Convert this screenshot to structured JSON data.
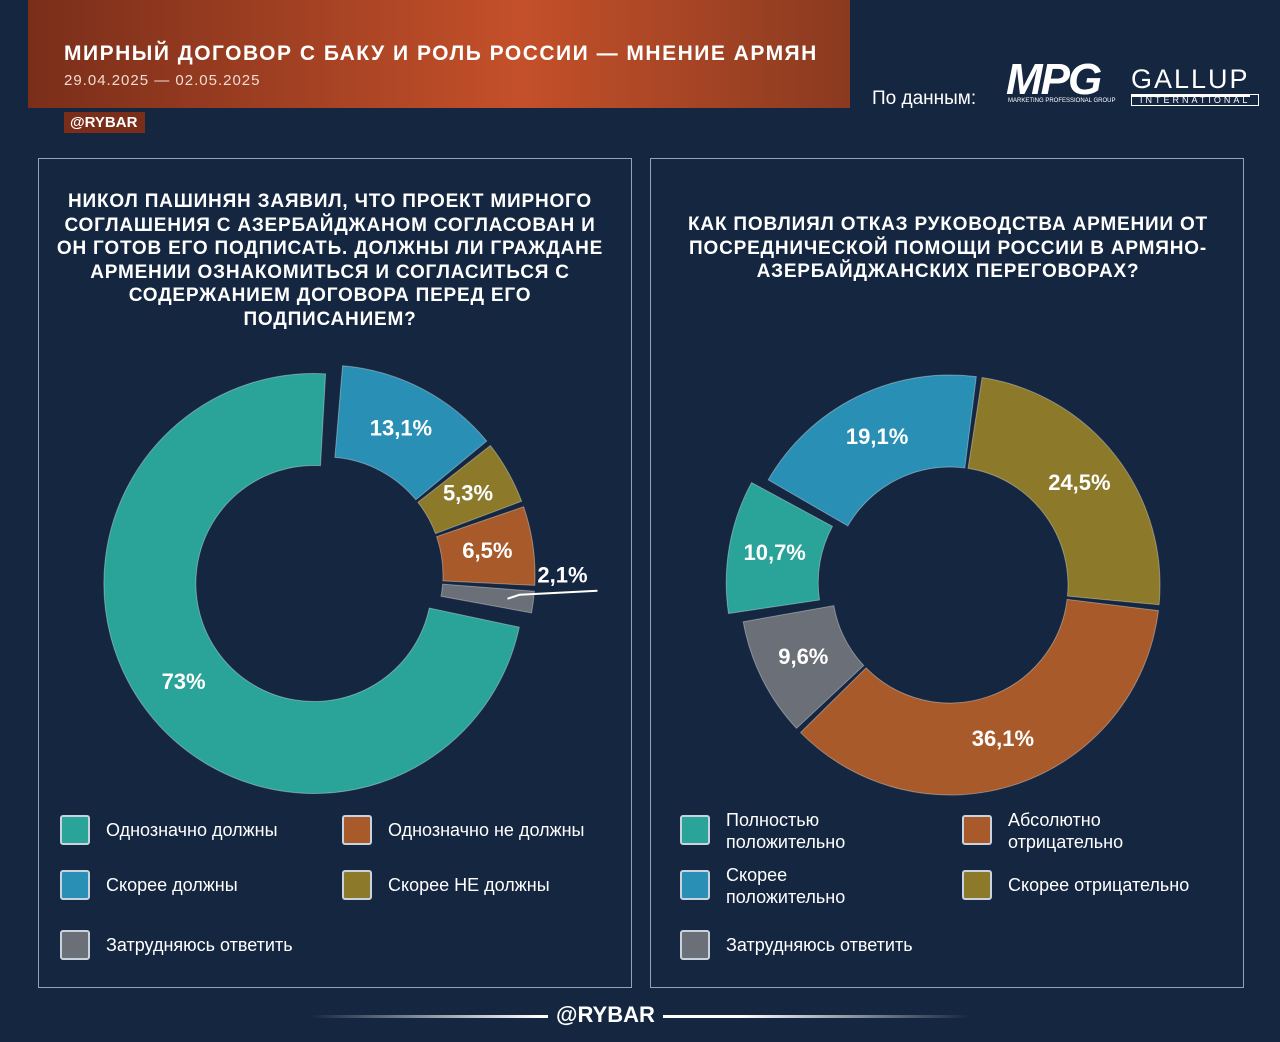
{
  "header": {
    "title": "МИРНЫЙ ДОГОВОР С БАКУ И РОЛЬ РОССИИ — МНЕНИЕ АРМЯН",
    "dates": "29.04.2025 — 02.05.2025",
    "channel": "@RYBAR",
    "source_label": "По данным:",
    "mpg": "MPG",
    "mpg_sub": "MARKETING PROFESSIONAL GROUP",
    "gallup": "GALLUP",
    "gallup_sub": "INTERNATIONAL"
  },
  "footer": {
    "channel": "@RYBAR"
  },
  "chart_data": [
    {
      "type": "pie",
      "title": "НИКОЛ ПАШИНЯН ЗАЯВИЛ, ЧТО ПРОЕКТ МИРНОГО СОГЛАШЕНИЯ С АЗЕРБАЙДЖАНОМ СОГЛАСОВАН И ОН ГОТОВ ЕГО ПОДПИСАТЬ. ДОЛЖНЫ ЛИ ГРАЖДАНЕ АРМЕНИИ ОЗНАКОМИТЬСЯ И СОГЛАСИТЬСЯ С СОДЕРЖАНИЕМ ДОГОВОРА ПЕРЕД ЕГО ПОДПИСАНИЕМ?",
      "categories": [
        "Скорее должны",
        "Скорее НЕ должны",
        "Однозначно не должны",
        "Затрудняюсь ответить",
        "Однозначно должны"
      ],
      "values": [
        13.1,
        5.3,
        6.5,
        2.1,
        73
      ],
      "value_labels": [
        "13,1%",
        "5,3%",
        "6,5%",
        "2,1%",
        "73%"
      ],
      "colors": [
        "#2a8fb5",
        "#8c7a2a",
        "#a85a2a",
        "#6b6f78",
        "#2aa398"
      ]
    },
    {
      "type": "pie",
      "title": "КАК ПОВЛИЯЛ ОТКАЗ РУКОВОДСТВА АРМЕНИИ ОТ ПОСРЕДНИЧЕСКОЙ ПОМОЩИ РОССИИ В АРМЯНО-АЗЕРБАЙДЖАНСКИХ ПЕРЕГОВОРАХ?",
      "categories": [
        "Скорее отрицательно",
        "Абсолютно отрицательно",
        "Затрудняюсь ответить",
        "Полностью положительно",
        "Скорее положительно"
      ],
      "values": [
        24.5,
        36.1,
        9.6,
        10.7,
        19.1
      ],
      "value_labels": [
        "24,5%",
        "36,1%",
        "9,6%",
        "10,7%",
        "19,1%"
      ],
      "colors": [
        "#8c7a2a",
        "#a85a2a",
        "#6b6f78",
        "#2aa398",
        "#2a8fb5"
      ]
    }
  ]
}
